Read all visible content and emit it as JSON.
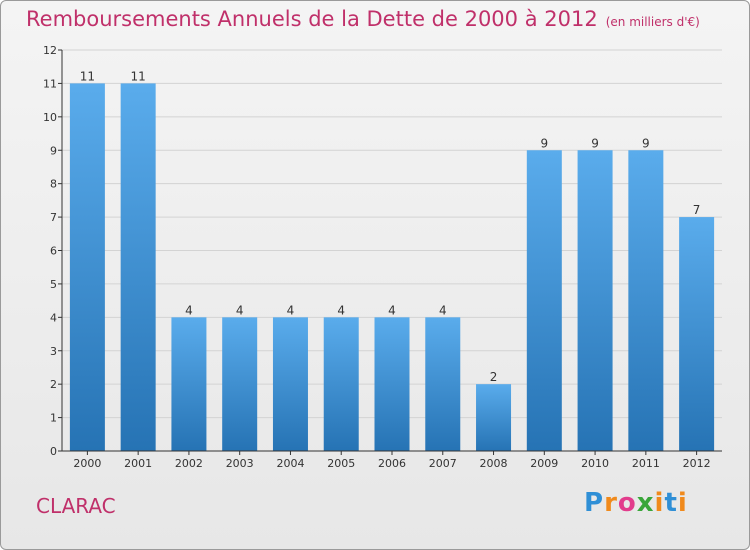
{
  "title": "Remboursements Annuels de la Dette de 2000 à 2012",
  "subtitle": "(en milliers d'€)",
  "commune": "CLARAC",
  "logo": {
    "letters": [
      "P",
      "r",
      "o",
      "x",
      "i",
      "t",
      "i"
    ],
    "colors": [
      "#2f8fd6",
      "#f08a1c",
      "#e23c8c",
      "#3aa63a",
      "#f08a1c",
      "#2f8fd6",
      "#f08a1c"
    ]
  },
  "colors": {
    "title": "#c0306a",
    "bar_light": "#5aacec",
    "bar_dark": "#2673b4",
    "axis": "#333333",
    "grid": "#d3d3d3"
  },
  "chart_data": {
    "type": "bar",
    "categories": [
      "2000",
      "2001",
      "2002",
      "2003",
      "2004",
      "2005",
      "2006",
      "2007",
      "2008",
      "2009",
      "2010",
      "2011",
      "2012"
    ],
    "values": [
      11,
      11,
      4,
      4,
      4,
      4,
      4,
      4,
      2,
      9,
      9,
      9,
      7
    ],
    "ylim": [
      0,
      12
    ],
    "yticks": [
      0,
      1,
      2,
      3,
      4,
      5,
      6,
      7,
      8,
      9,
      10,
      11,
      12
    ],
    "data_labels": true,
    "grid": true
  }
}
